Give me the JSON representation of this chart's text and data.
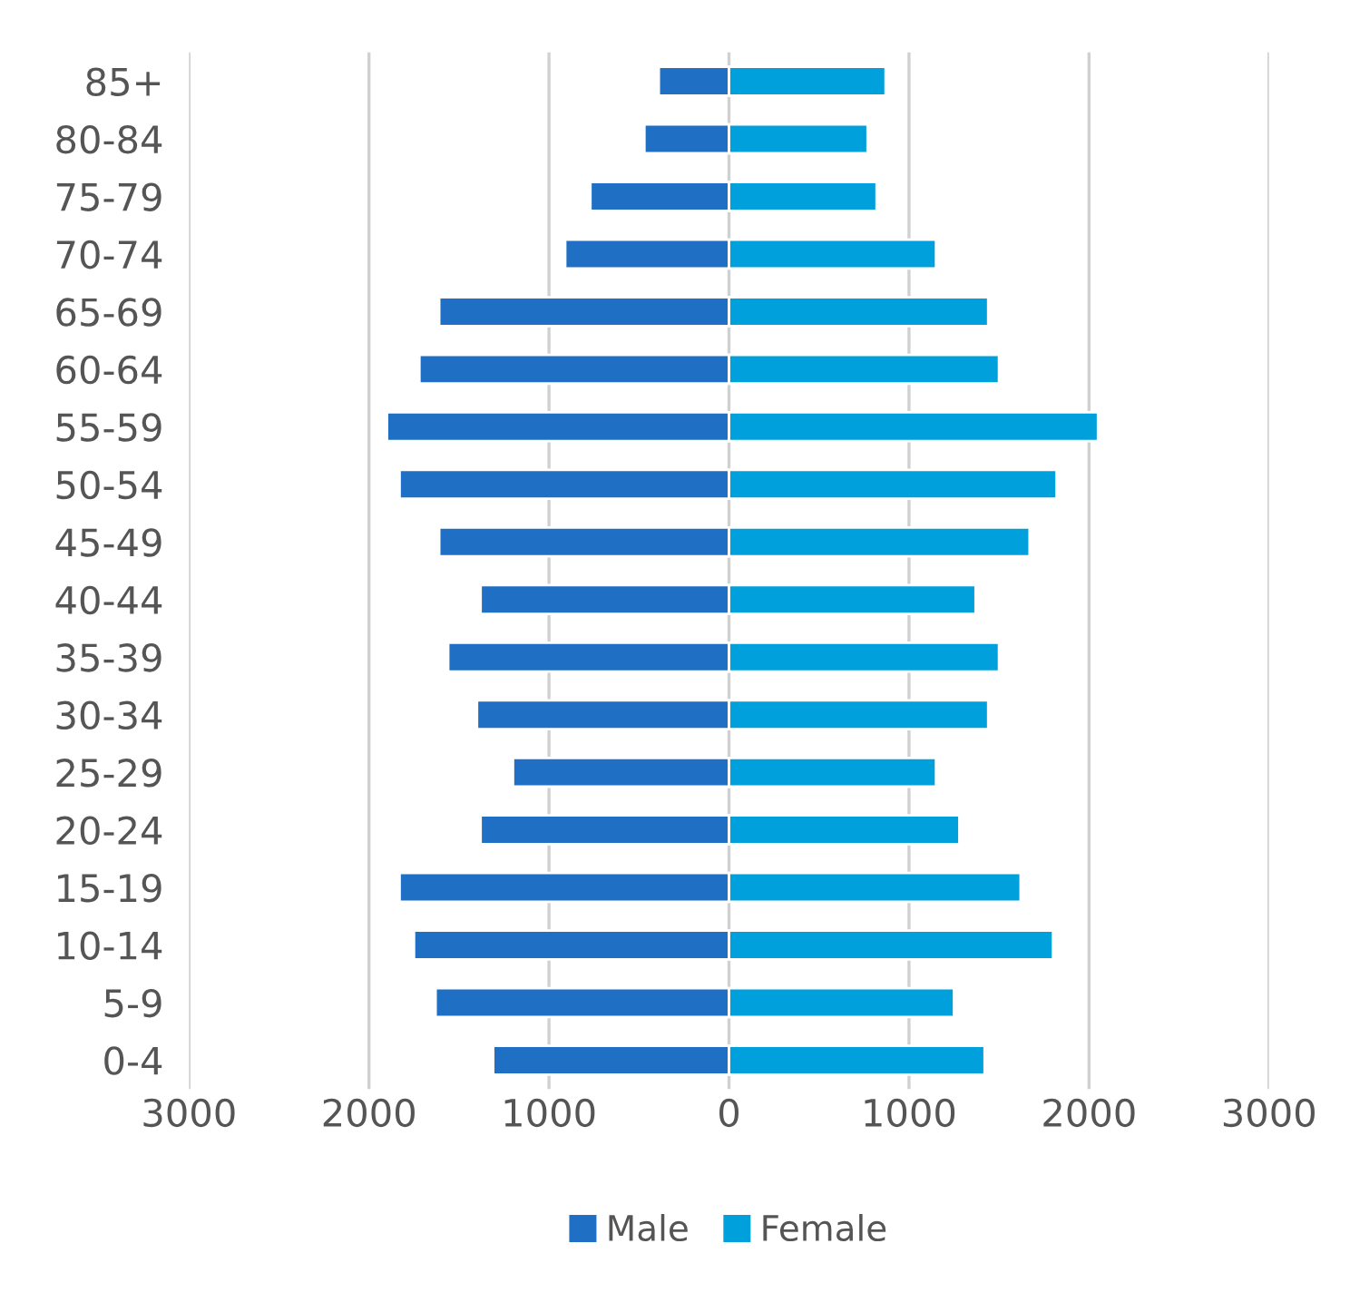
{
  "chart_data": {
    "type": "bar",
    "orientation": "horizontal",
    "categories": [
      "85+",
      "80-84",
      "75-79",
      "70-74",
      "65-69",
      "60-64",
      "55-59",
      "50-54",
      "45-49",
      "40-44",
      "35-39",
      "30-34",
      "25-29",
      "20-24",
      "15-19",
      "10-14",
      "5-9",
      "0-4"
    ],
    "series": [
      {
        "name": "Male",
        "color": "#1f6fc5",
        "values": [
          -390,
          -470,
          -770,
          -910,
          -1610,
          -1720,
          -1900,
          -1830,
          -1610,
          -1380,
          -1560,
          -1400,
          -1200,
          -1380,
          -1830,
          -1750,
          -1630,
          -1310
        ]
      },
      {
        "name": "Female",
        "color": "#00a0dc",
        "values": [
          870,
          770,
          820,
          1150,
          1440,
          1500,
          2050,
          1820,
          1670,
          1370,
          1500,
          1440,
          1150,
          1280,
          1620,
          1800,
          1250,
          1420
        ]
      }
    ],
    "xlim": [
      -3000,
      3000
    ],
    "xticks": [
      {
        "value": -3000,
        "label": "3000"
      },
      {
        "value": -2000,
        "label": "2000"
      },
      {
        "value": -1000,
        "label": "1000"
      },
      0,
      1000,
      2000,
      3000
    ],
    "stacked": true,
    "grid": "x",
    "legend": "bottom"
  }
}
